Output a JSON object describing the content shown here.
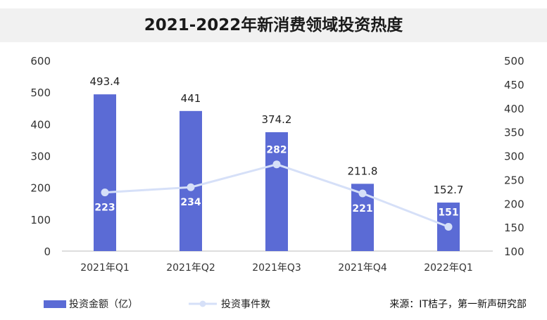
{
  "chart_data": {
    "type": "bar+line",
    "title": "2021-2022年新消费领域投资热度",
    "categories": [
      "2021年Q1",
      "2021年Q2",
      "2021年Q3",
      "2021年Q4",
      "2022年Q1"
    ],
    "series": [
      {
        "name": "投资金额（亿）",
        "type": "bar",
        "axis": "left",
        "values": [
          493.4,
          441,
          374.2,
          211.8,
          152.7
        ],
        "labels": [
          "493.4",
          "441",
          "374.2",
          "211.8",
          "152.7"
        ]
      },
      {
        "name": "投资事件数",
        "type": "line",
        "axis": "right",
        "values": [
          223,
          234,
          282,
          221,
          151
        ],
        "labels": [
          "223",
          "234",
          "282",
          "221",
          "151"
        ]
      }
    ],
    "y_left": {
      "min": 0,
      "max": 600,
      "ticks": [
        "0",
        "100",
        "200",
        "300",
        "400",
        "500",
        "600"
      ]
    },
    "y_right": {
      "min": 100,
      "max": 500,
      "ticks": [
        "100",
        "150",
        "200",
        "250",
        "300",
        "350",
        "400",
        "450",
        "500"
      ]
    },
    "grid": false,
    "legend_position": "bottom-left",
    "source": "来源：IT桔子，第一新声研究部"
  },
  "colors": {
    "bar": "#5b6bd5",
    "line": "#d6e0f8",
    "marker": "#d6e0f8",
    "title_bg": "#f1f1f1",
    "axis_text": "#333333"
  }
}
